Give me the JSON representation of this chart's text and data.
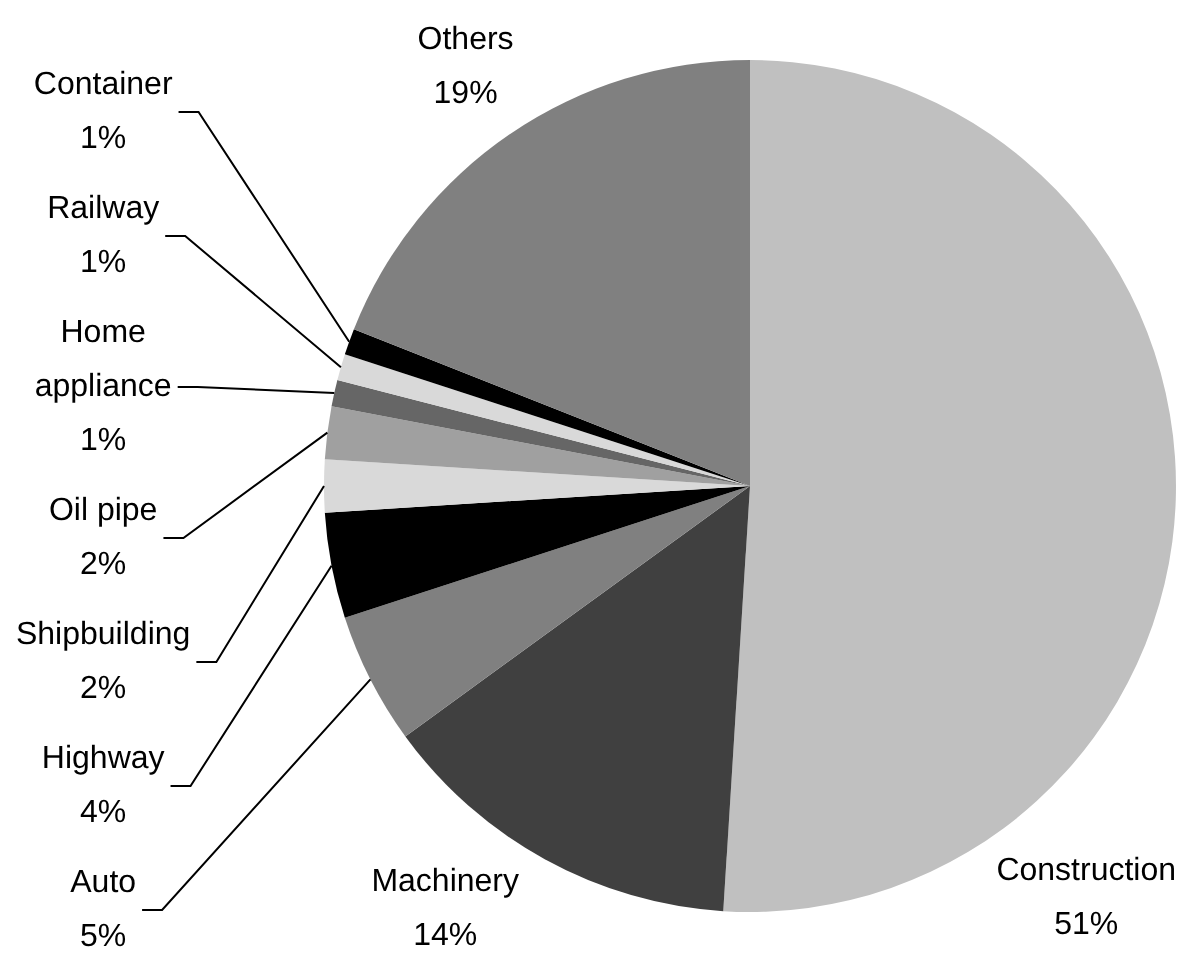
{
  "chart_data": {
    "type": "pie",
    "categories": [
      "Construction",
      "Machinery",
      "Auto",
      "Highway",
      "Shipbuilding",
      "Oil pipe",
      "Home appliance",
      "Railway",
      "Container",
      "Others"
    ],
    "values": [
      51,
      14,
      5,
      4,
      2,
      2,
      1,
      1,
      1,
      19
    ],
    "colors": [
      "#c0c0c0",
      "#404040",
      "#808080",
      "#000000",
      "#d9d9d9",
      "#a0a0a0",
      "#666666",
      "#d9d9d9",
      "#000000",
      "#808080"
    ],
    "value_labels": [
      "51%",
      "14%",
      "5%",
      "4%",
      "2%",
      "2%",
      "1%",
      "1%",
      "1%",
      "19%"
    ]
  }
}
